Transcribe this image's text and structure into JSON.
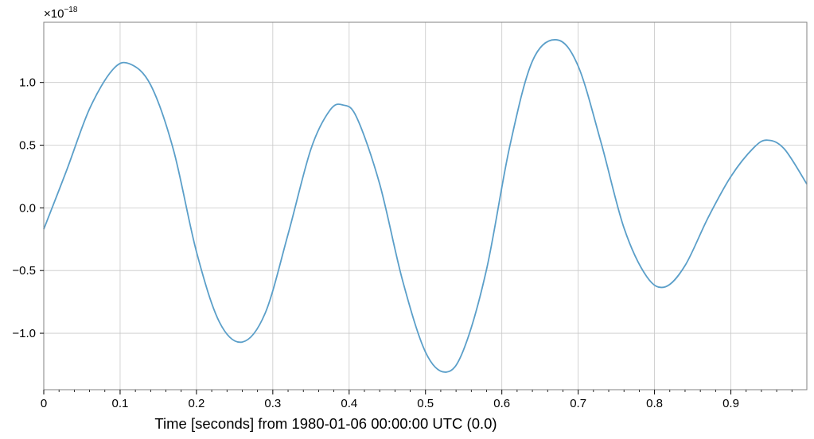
{
  "chart_data": {
    "type": "line",
    "title": "",
    "xlabel": "Time [seconds] from 1980-01-06 00:00:00 UTC (0.0)",
    "ylabel": "",
    "y_scale_multiplier": "×10⁻¹⁸",
    "y_offset_base": "×10",
    "y_offset_exp": "−18",
    "xlim": [
      0.0,
      0.9995
    ],
    "ylim": [
      -1.45,
      1.48
    ],
    "grid": true,
    "line_color": "#5b9fc9",
    "x_ticks": [
      {
        "value": 0.0,
        "label": "0"
      },
      {
        "value": 0.1,
        "label": "0.1"
      },
      {
        "value": 0.2,
        "label": "0.2"
      },
      {
        "value": 0.3,
        "label": "0.3"
      },
      {
        "value": 0.4,
        "label": "0.4"
      },
      {
        "value": 0.5,
        "label": "0.5"
      },
      {
        "value": 0.6,
        "label": "0.6"
      },
      {
        "value": 0.7,
        "label": "0.7"
      },
      {
        "value": 0.8,
        "label": "0.8"
      },
      {
        "value": 0.9,
        "label": "0.9"
      }
    ],
    "y_ticks": [
      {
        "value": 1.0,
        "label": "1.0"
      },
      {
        "value": 0.5,
        "label": "0.5"
      },
      {
        "value": 0.0,
        "label": "0.0"
      },
      {
        "value": -0.5,
        "label": "−0.5"
      },
      {
        "value": -1.0,
        "label": "−1.0"
      }
    ],
    "series": [
      {
        "x": [
          0.0,
          0.03,
          0.06,
          0.09,
          0.112,
          0.14,
          0.17,
          0.2,
          0.23,
          0.26,
          0.29,
          0.32,
          0.35,
          0.375,
          0.392,
          0.41,
          0.44,
          0.47,
          0.5,
          0.527,
          0.55,
          0.58,
          0.61,
          0.64,
          0.672,
          0.7,
          0.73,
          0.76,
          0.79,
          0.814,
          0.84,
          0.87,
          0.9,
          0.93,
          0.948,
          0.97,
          0.9995
        ],
        "y": [
          -0.17,
          0.3,
          0.79,
          1.1,
          1.15,
          0.98,
          0.46,
          -0.35,
          -0.91,
          -1.07,
          -0.84,
          -0.21,
          0.47,
          0.78,
          0.82,
          0.72,
          0.19,
          -0.58,
          -1.15,
          -1.31,
          -1.13,
          -0.49,
          0.48,
          1.17,
          1.34,
          1.13,
          0.52,
          -0.16,
          -0.55,
          -0.63,
          -0.46,
          -0.08,
          0.25,
          0.48,
          0.54,
          0.47,
          0.19
        ]
      }
    ]
  }
}
